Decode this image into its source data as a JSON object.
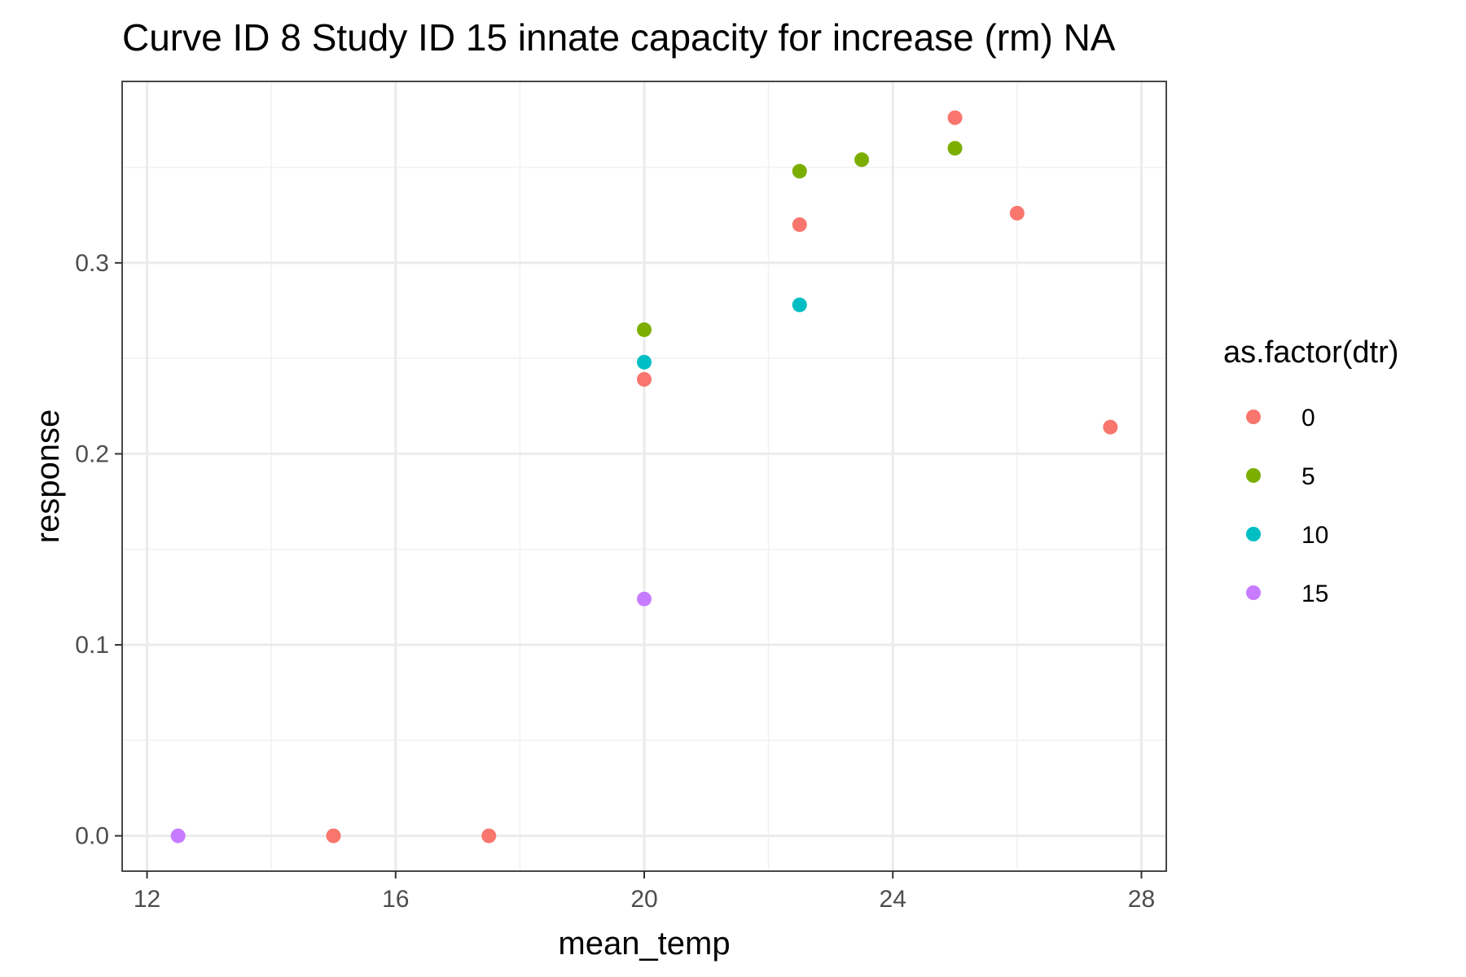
{
  "chart_data": {
    "type": "scatter",
    "title": "Curve ID 8 Study ID 15 innate capacity for increase (rm) NA",
    "xlabel": "mean_temp",
    "ylabel": "response",
    "xlim": [
      11.6,
      28.4
    ],
    "ylim": [
      -0.0185,
      0.395
    ],
    "x_ticks": [
      12,
      16,
      20,
      24,
      28
    ],
    "y_ticks": [
      0.0,
      0.1,
      0.2,
      0.3
    ],
    "x_tick_labels": [
      "12",
      "16",
      "20",
      "24",
      "28"
    ],
    "y_tick_labels": [
      "0.0",
      "0.1",
      "0.2",
      "0.3"
    ],
    "grid": true,
    "legend": {
      "title": "as.factor(dtr)",
      "position": "right"
    },
    "series": [
      {
        "name": "0",
        "color": "#F8766D",
        "points": [
          [
            15,
            0.0
          ],
          [
            17.5,
            0.0
          ],
          [
            20,
            0.239
          ],
          [
            22.5,
            0.32
          ],
          [
            25,
            0.376
          ],
          [
            26,
            0.326
          ],
          [
            27.5,
            0.214
          ]
        ]
      },
      {
        "name": "5",
        "color": "#7CAE00",
        "points": [
          [
            20,
            0.265
          ],
          [
            22.5,
            0.348
          ],
          [
            23.5,
            0.354
          ],
          [
            25,
            0.36
          ]
        ]
      },
      {
        "name": "10",
        "color": "#00BFC4",
        "points": [
          [
            20,
            0.248
          ],
          [
            22.5,
            0.278
          ]
        ]
      },
      {
        "name": "15",
        "color": "#C77CFF",
        "points": [
          [
            12.5,
            0.0
          ],
          [
            20,
            0.124
          ]
        ]
      }
    ]
  }
}
